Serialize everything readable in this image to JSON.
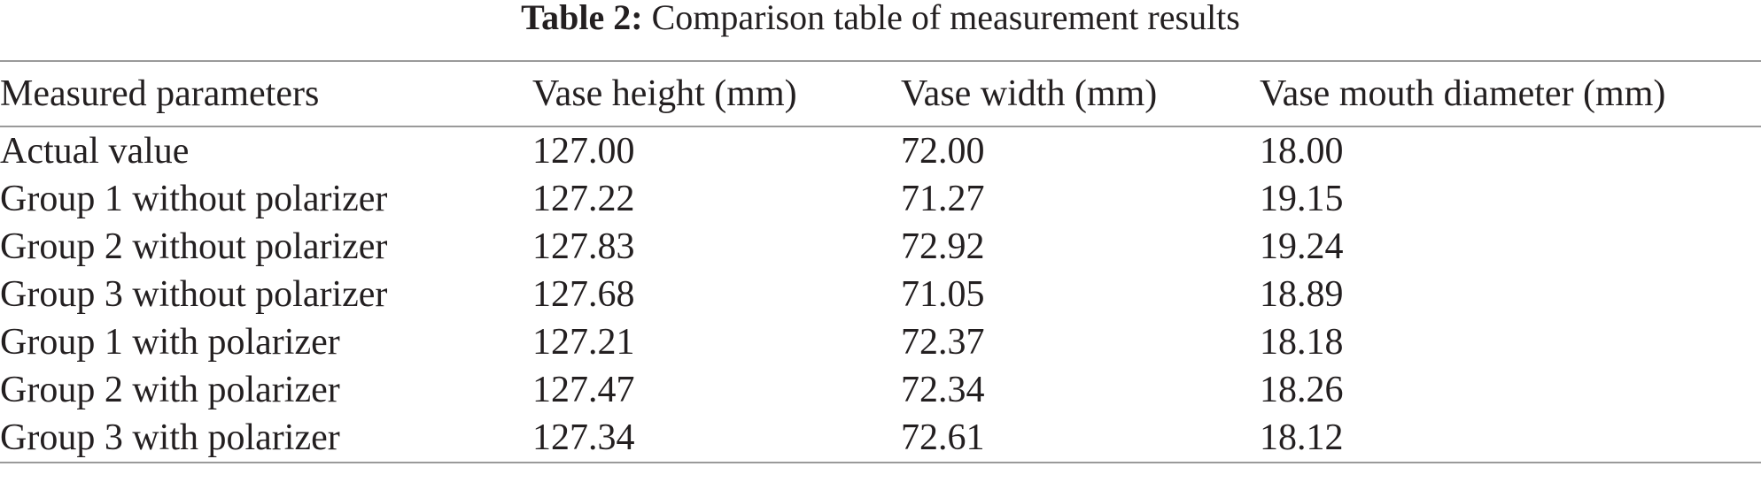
{
  "caption": {
    "label": "Table 2:",
    "text": "Comparison table of measurement results"
  },
  "table": {
    "header": [
      "Measured parameters",
      "Vase height (mm)",
      "Vase width (mm)",
      "Vase mouth diameter (mm)"
    ],
    "rows": [
      [
        "Actual value",
        "127.00",
        "72.00",
        "18.00"
      ],
      [
        "Group 1 without polarizer",
        "127.22",
        "71.27",
        "19.15"
      ],
      [
        "Group 2 without polarizer",
        "127.83",
        "72.92",
        "19.24"
      ],
      [
        "Group 3 without polarizer",
        "127.68",
        "71.05",
        "18.89"
      ],
      [
        "Group 1 with polarizer",
        "127.21",
        "72.37",
        "18.18"
      ],
      [
        "Group 2 with polarizer",
        "127.47",
        "72.34",
        "18.26"
      ],
      [
        "Group 3 with polarizer",
        "127.34",
        "72.61",
        "18.12"
      ]
    ]
  }
}
